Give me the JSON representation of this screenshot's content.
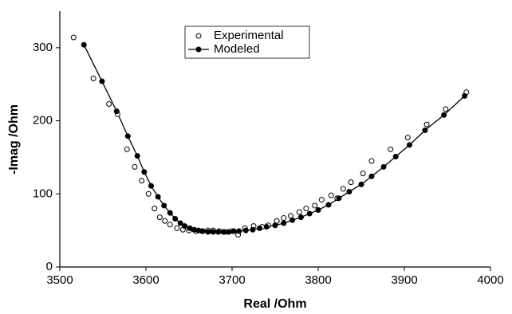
{
  "chart_data": {
    "type": "scatter",
    "x_label": "Real /Ohm",
    "y_label": "-Imag /Ohm",
    "xlim": [
      3500,
      4000
    ],
    "ylim": [
      0,
      350
    ],
    "xticks": [
      3500,
      3600,
      3700,
      3800,
      3900,
      4000
    ],
    "yticks": [
      0,
      100,
      200,
      300
    ],
    "legend": "top-center",
    "series": [
      {
        "name": "Experimental",
        "color": "#000000",
        "marker": "open",
        "line": false,
        "x": [
          3516,
          3539,
          3557,
          3567,
          3578,
          3587,
          3595,
          3603,
          3610,
          3616,
          3622,
          3628,
          3636,
          3643,
          3650,
          3658,
          3665,
          3672,
          3678,
          3685,
          3692,
          3700,
          3707,
          3715,
          3725,
          3735,
          3742,
          3752,
          3760,
          3768,
          3778,
          3786,
          3796,
          3804,
          3815,
          3822,
          3829,
          3838,
          3852,
          3862,
          3884,
          3904,
          3926,
          3948,
          3972
        ],
        "values": [
          314,
          258,
          223,
          209,
          161,
          137,
          118,
          100,
          80,
          68,
          63,
          58,
          53,
          51,
          50,
          49,
          49,
          50,
          50,
          49,
          48,
          49,
          44,
          53,
          56,
          55,
          57,
          63,
          67,
          70,
          75,
          80,
          84,
          92,
          98,
          94,
          107,
          116,
          128,
          145,
          161,
          177,
          195,
          216,
          239
        ]
      },
      {
        "name": "Modeled",
        "color": "#000000",
        "marker": "filled",
        "line": true,
        "x": [
          3528,
          3549,
          3566,
          3579,
          3590,
          3598,
          3606,
          3614,
          3621,
          3628,
          3634,
          3640,
          3645,
          3651,
          3656,
          3661,
          3666,
          3672,
          3678,
          3684,
          3690,
          3696,
          3702,
          3708,
          3716,
          3724,
          3732,
          3740,
          3750,
          3760,
          3770,
          3780,
          3790,
          3800,
          3812,
          3824,
          3836,
          3850,
          3862,
          3876,
          3890,
          3906,
          3924,
          3946,
          3970
        ],
        "values": [
          304,
          254,
          213,
          179,
          152,
          130,
          111,
          96,
          84,
          74,
          66,
          60,
          56,
          53,
          51,
          50,
          49,
          48,
          48,
          48,
          48,
          48,
          49,
          49,
          50,
          51,
          53,
          55,
          57,
          60,
          64,
          68,
          73,
          78,
          85,
          94,
          103,
          113,
          124,
          137,
          151,
          167,
          187,
          208,
          234
        ]
      }
    ]
  }
}
